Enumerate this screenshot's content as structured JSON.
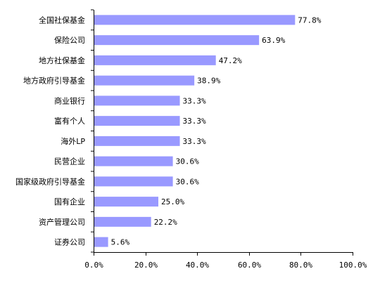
{
  "chart_data": {
    "type": "bar",
    "orientation": "horizontal",
    "categories": [
      "全国社保基金",
      "保险公司",
      "地方社保基金",
      "地方政府引导基金",
      "商业银行",
      "富有个人",
      "海外LP",
      "民营企业",
      "国家级政府引导基金",
      "国有企业",
      "资产管理公司",
      "证券公司"
    ],
    "values": [
      77.8,
      63.9,
      47.2,
      38.9,
      33.3,
      33.3,
      33.3,
      30.6,
      30.6,
      25.0,
      22.2,
      5.6
    ],
    "value_labels": [
      "77.8%",
      "63.9%",
      "47.2%",
      "38.9%",
      "33.3%",
      "33.3%",
      "33.3%",
      "30.6%",
      "30.6%",
      "25.0%",
      "22.2%",
      "5.6%"
    ],
    "xlim": [
      0,
      100
    ],
    "ticks": [
      0,
      20,
      40,
      60,
      80,
      100
    ],
    "tick_labels": [
      "0.0%",
      "20.0%",
      "40.0%",
      "60.0%",
      "80.0%",
      "100.0%"
    ],
    "grid": false,
    "title": "",
    "xlabel": "",
    "ylabel": "",
    "colors": {
      "bar": "#9999ff",
      "axis": "#000000"
    }
  }
}
